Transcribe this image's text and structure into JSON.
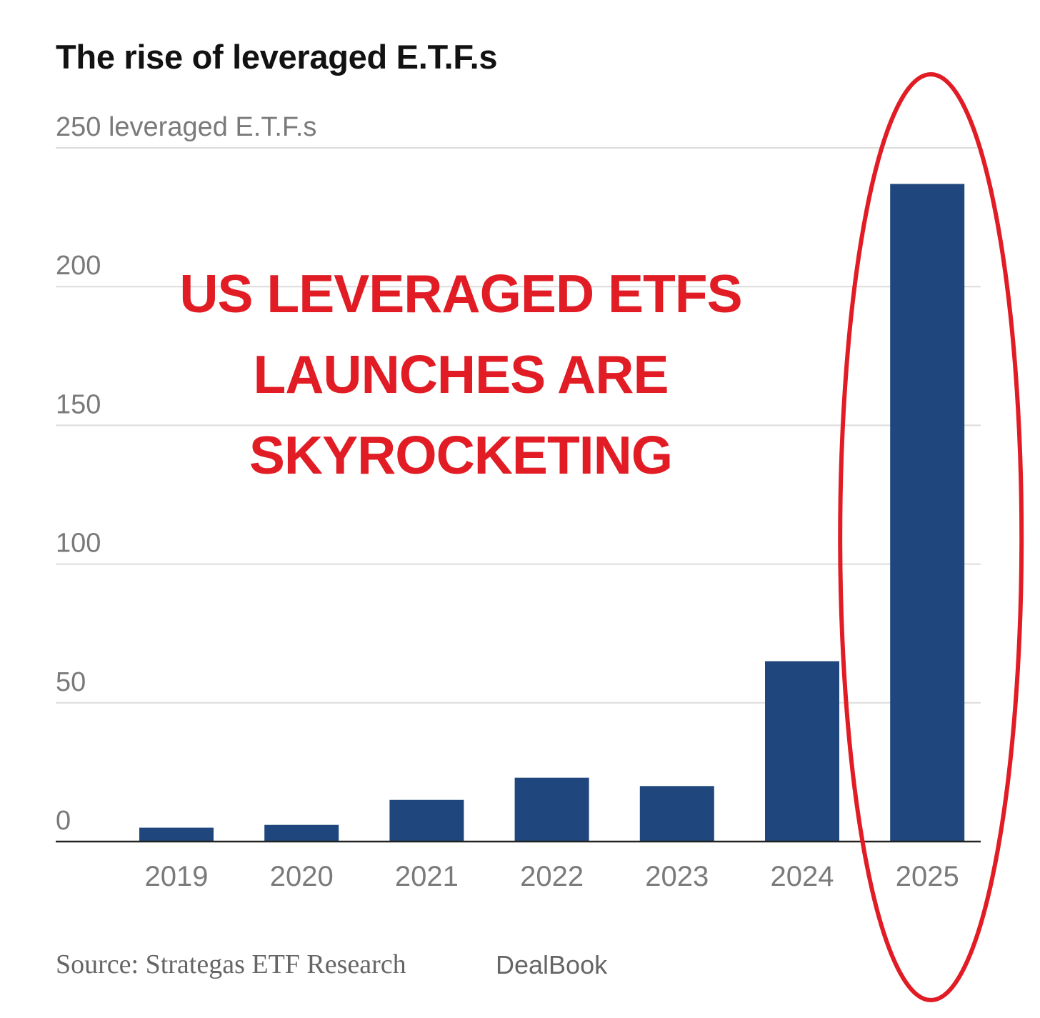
{
  "chart_data": {
    "type": "bar",
    "title": "The rise of leveraged E.T.F.s",
    "ylabel": "leveraged E.T.F.s",
    "xlabel": "",
    "categories": [
      "2019",
      "2020",
      "2021",
      "2022",
      "2023",
      "2024",
      "2025"
    ],
    "values": [
      5,
      6,
      15,
      23,
      20,
      65,
      237
    ],
    "ylim": [
      0,
      250
    ],
    "yticks": [
      0,
      50,
      100,
      150,
      200,
      250
    ],
    "ytick_labels": [
      "0",
      "50",
      "100",
      "150",
      "200",
      "250 leveraged E.T.F.s"
    ],
    "grid": true,
    "bar_color": "#1f477d",
    "highlight": {
      "category": "2025",
      "shape": "ellipse",
      "color": "#e11c24"
    },
    "annotation": [
      "US LEVERAGED ETFS",
      "LAUNCHES ARE",
      "SKYROCKETING"
    ],
    "source": "Source: Strategas ETF Research",
    "credit": "DealBook"
  }
}
